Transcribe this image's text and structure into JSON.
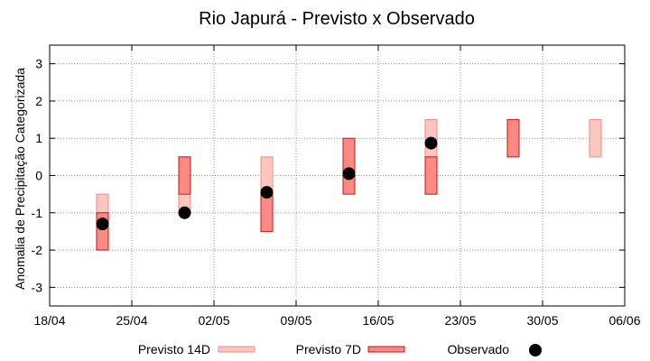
{
  "chart_data": {
    "type": "bar",
    "title": "Rio Japurá - Previsto x Observado",
    "ylabel": "Anomalia de Precipitação Categorizada",
    "xlabel": "",
    "ylim": [
      -3.5,
      3.5
    ],
    "yticks": [
      -3,
      -2,
      -1,
      0,
      1,
      2,
      3
    ],
    "xticks": [
      "18/04",
      "25/04",
      "02/05",
      "09/05",
      "16/05",
      "23/05",
      "30/05",
      "06/06"
    ],
    "grid": true,
    "legend_position": "bottom",
    "colors": {
      "previsto14_fill": "#fbc5c0",
      "previsto14_stroke": "#e88e86",
      "previsto7_fill": "#fb8a84",
      "previsto7_stroke": "#c81414",
      "observado": "#000000",
      "grid": "#999999"
    },
    "series": [
      {
        "name": "Previsto 14D",
        "type": "range",
        "points": [
          {
            "x": 4.5,
            "low": -1.0,
            "high": -0.5
          },
          {
            "x": 11.5,
            "low": -1.0,
            "high": 0.5
          },
          {
            "x": 18.5,
            "low": -0.5,
            "high": 0.5
          },
          {
            "x": 32.5,
            "low": -0.5,
            "high": 1.5
          },
          {
            "x": 46.5,
            "low": 0.5,
            "high": 1.5
          }
        ]
      },
      {
        "name": "Previsto 7D",
        "type": "range",
        "points": [
          {
            "x": 4.5,
            "low": -2.0,
            "high": -1.0
          },
          {
            "x": 11.5,
            "low": -0.5,
            "high": 0.5
          },
          {
            "x": 18.5,
            "low": -1.5,
            "high": -0.5
          },
          {
            "x": 25.5,
            "low": -0.5,
            "high": 1.0
          },
          {
            "x": 32.5,
            "low": -0.5,
            "high": 0.5
          },
          {
            "x": 39.5,
            "low": 0.5,
            "high": 1.5
          }
        ]
      },
      {
        "name": "Observado",
        "type": "scatter",
        "points": [
          {
            "x": 4.5,
            "y": -1.3
          },
          {
            "x": 11.5,
            "y": -1.0
          },
          {
            "x": 18.5,
            "y": -0.45
          },
          {
            "x": 25.5,
            "y": 0.05
          },
          {
            "x": 32.5,
            "y": 0.87
          }
        ]
      }
    ]
  }
}
